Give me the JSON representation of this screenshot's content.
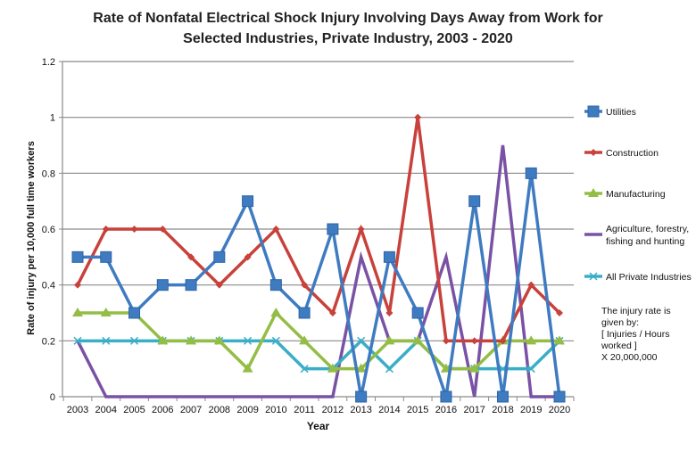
{
  "chart_data": {
    "type": "line",
    "title_line1": "Rate of Nonfatal Electrical Shock Injury Involving Days Away from Work for",
    "title_line2": "Selected Industries, Private Industry, 2003 - 2020",
    "xlabel": "Year",
    "ylabel": "Rate of injury per 10,000 full time workers",
    "ylim": [
      0,
      1.2
    ],
    "yticks": [
      "0",
      "0.2",
      "0.4",
      "0.6",
      "0.8",
      "1",
      "1.2"
    ],
    "grid": true,
    "legend_placement": "right",
    "x": [
      "2003",
      "2004",
      "2005",
      "2006",
      "2007",
      "2008",
      "2009",
      "2010",
      "2011",
      "2012",
      "2013",
      "2014",
      "2015",
      "2016",
      "2017",
      "2018",
      "2019",
      "2020"
    ],
    "series": [
      {
        "name": "Utilities",
        "color": "#3f7bc1",
        "marker": "square",
        "values": [
          0.5,
          0.5,
          0.3,
          0.4,
          0.4,
          0.5,
          0.7,
          0.4,
          0.3,
          0.6,
          0,
          0.5,
          0.3,
          0,
          0.7,
          0,
          0.8,
          0
        ]
      },
      {
        "name": "Construction",
        "color": "#c8413b",
        "marker": "diamond",
        "values": [
          0.4,
          0.6,
          0.6,
          0.6,
          0.5,
          0.4,
          0.5,
          0.6,
          0.4,
          0.3,
          0.6,
          0.3,
          1.0,
          0.2,
          0.2,
          0.2,
          0.4,
          0.3
        ]
      },
      {
        "name": "Manufacturing",
        "color": "#93bd45",
        "marker": "triangle",
        "values": [
          0.3,
          0.3,
          0.3,
          0.2,
          0.2,
          0.2,
          0.1,
          0.3,
          0.2,
          0.1,
          0.1,
          0.2,
          0.2,
          0.1,
          0.1,
          0.2,
          0.2,
          0.2
        ]
      },
      {
        "name": "Agriculture, forestry, fishing and hunting",
        "name_lines": [
          "Agriculture, forestry,",
          "fishing and hunting"
        ],
        "color": "#7a52a5",
        "marker": "none",
        "values": [
          0.2,
          0,
          0,
          0,
          0,
          0,
          0,
          0,
          0,
          0,
          0.5,
          0.2,
          0.2,
          0.5,
          0,
          0.9,
          0,
          0
        ]
      },
      {
        "name": "All Private Industries",
        "color": "#3aaec6",
        "marker": "x",
        "values": [
          0.2,
          0.2,
          0.2,
          0.2,
          0.2,
          0.2,
          0.2,
          0.2,
          0.1,
          0.1,
          0.2,
          0.1,
          0.2,
          0.1,
          0.1,
          0.1,
          0.1,
          0.2
        ]
      }
    ],
    "annotation": [
      "The injury rate is",
      "given by:",
      "[ Injuries / Hours",
      "worked ]",
      "X 20,000,000"
    ]
  }
}
